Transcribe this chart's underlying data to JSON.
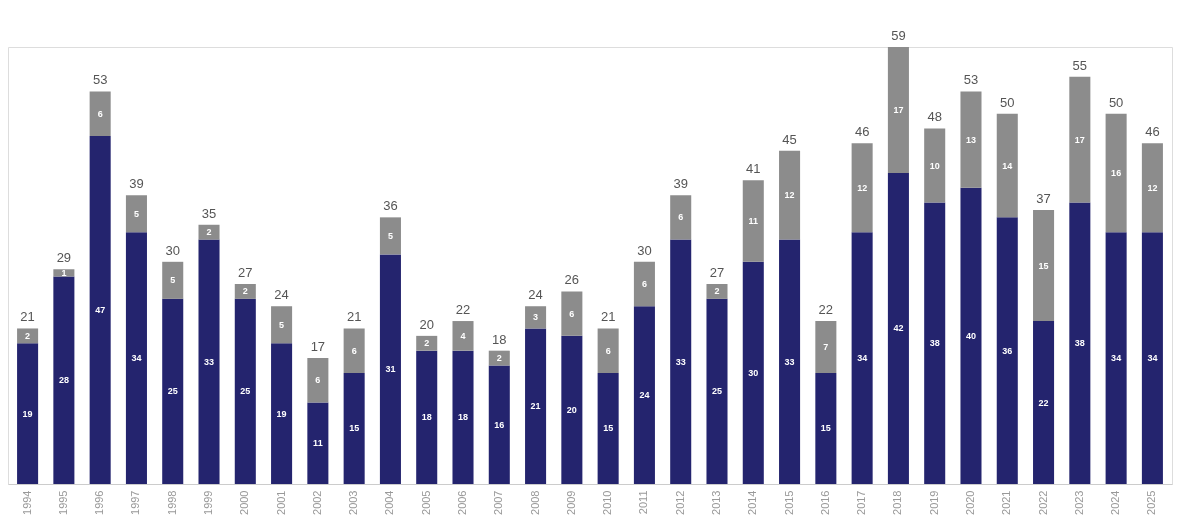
{
  "chart_data": {
    "type": "bar",
    "stacked": true,
    "data_labels": true,
    "grid": false,
    "tick_labels": "x",
    "categories": [
      "1994",
      "1995",
      "1996",
      "1997",
      "1998",
      "1999",
      "2000",
      "2001",
      "2002",
      "2003",
      "2004",
      "2005",
      "2006",
      "2007",
      "2008",
      "2009",
      "2010",
      "2011",
      "2012",
      "2013",
      "2014",
      "2015",
      "2016",
      "2017",
      "2018",
      "2019",
      "2020",
      "2021",
      "2022",
      "2023",
      "2024",
      "2025"
    ],
    "series": [
      {
        "color": "#24246e",
        "values": [
          19,
          28,
          47,
          34,
          25,
          33,
          25,
          19,
          11,
          15,
          31,
          18,
          18,
          16,
          21,
          20,
          15,
          24,
          33,
          25,
          30,
          33,
          15,
          34,
          42,
          38,
          40,
          36,
          22,
          38,
          34,
          34
        ]
      },
      {
        "color": "#8c8c8c",
        "values": [
          2,
          1,
          6,
          5,
          5,
          2,
          2,
          5,
          6,
          6,
          5,
          2,
          4,
          2,
          3,
          6,
          6,
          6,
          6,
          2,
          11,
          12,
          7,
          12,
          17,
          10,
          13,
          14,
          15,
          17,
          16,
          12
        ]
      }
    ],
    "totals": [
      "21",
      "29",
      "53",
      "39",
      "30",
      "35",
      "27",
      "24",
      "17",
      "21",
      "36",
      "20",
      "22",
      "18",
      "24",
      "26",
      "21",
      "30",
      "39",
      "27",
      "41",
      "45",
      "22",
      "46",
      "59",
      "48",
      "53",
      "50",
      "37",
      "55",
      "50",
      "46"
    ]
  }
}
